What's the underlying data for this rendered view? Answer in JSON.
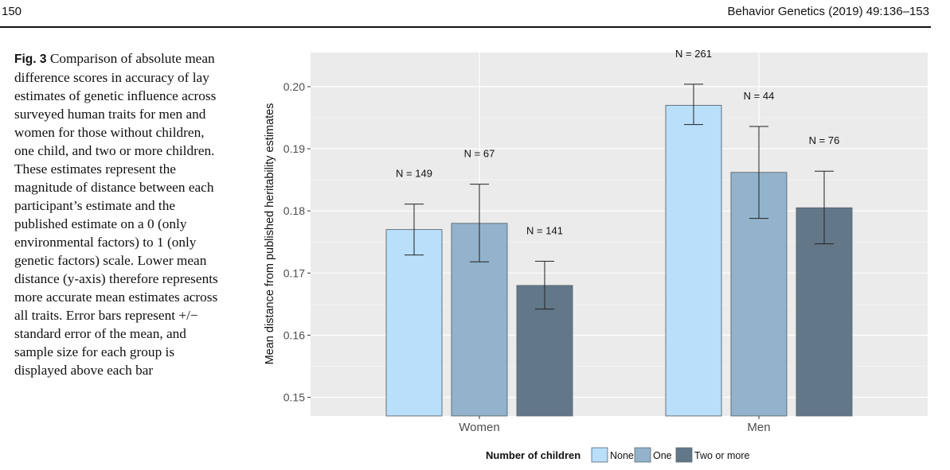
{
  "header": {
    "page_number": "150",
    "journal": "Behavior Genetics (2019) 49:136–153"
  },
  "caption": {
    "label": "Fig. 3",
    "text": "Comparison of absolute mean difference scores in accuracy of lay estimates of genetic influence across surveyed human traits for men and women for those without children, one child, and two or more children. These estimates represent the magnitude of distance between each participant’s estimate and the published estimate on a 0 (only environmental factors) to 1 (only genetic factors) scale. Lower mean distance (y-axis) therefore represents more accurate mean estimates across all traits. Error bars represent +/− standard error of the mean, and sample size for each group is displayed above each bar"
  },
  "chart_data": {
    "type": "bar",
    "title": "",
    "xlabel": "",
    "ylabel": "Mean distance from published heritability estimates",
    "ylim": [
      0.147,
      0.2055
    ],
    "yticks": [
      0.15,
      0.16,
      0.17,
      0.18,
      0.19,
      0.2
    ],
    "ytick_labels": [
      "0.15",
      "0.16",
      "0.17",
      "0.18",
      "0.19",
      "0.20"
    ],
    "categories": [
      "Women",
      "Men"
    ],
    "grid": true,
    "series": [
      {
        "name": "None",
        "color": "#b9dffa",
        "values": [
          0.177,
          0.197
        ],
        "se_low": [
          0.1729,
          0.1939
        ],
        "se_high": [
          0.1811,
          0.2004
        ],
        "n_labels": [
          "N = 149",
          "N = 261"
        ]
      },
      {
        "name": "One",
        "color": "#92b3cb",
        "values": [
          0.178,
          0.1862
        ],
        "se_low": [
          0.1718,
          0.1788
        ],
        "se_high": [
          0.1843,
          0.1936
        ],
        "n_labels": [
          "N = 67",
          "N = 44"
        ]
      },
      {
        "name": "Two or more",
        "color": "#627889",
        "values": [
          0.168,
          0.1805
        ],
        "se_low": [
          0.1642,
          0.1747
        ],
        "se_high": [
          0.1719,
          0.1864
        ],
        "n_labels": [
          "N = 141",
          "N = 76"
        ]
      }
    ],
    "legend": {
      "title": "Number of children",
      "position": "bottom",
      "entries": [
        "None",
        "One",
        "Two or more"
      ]
    }
  }
}
